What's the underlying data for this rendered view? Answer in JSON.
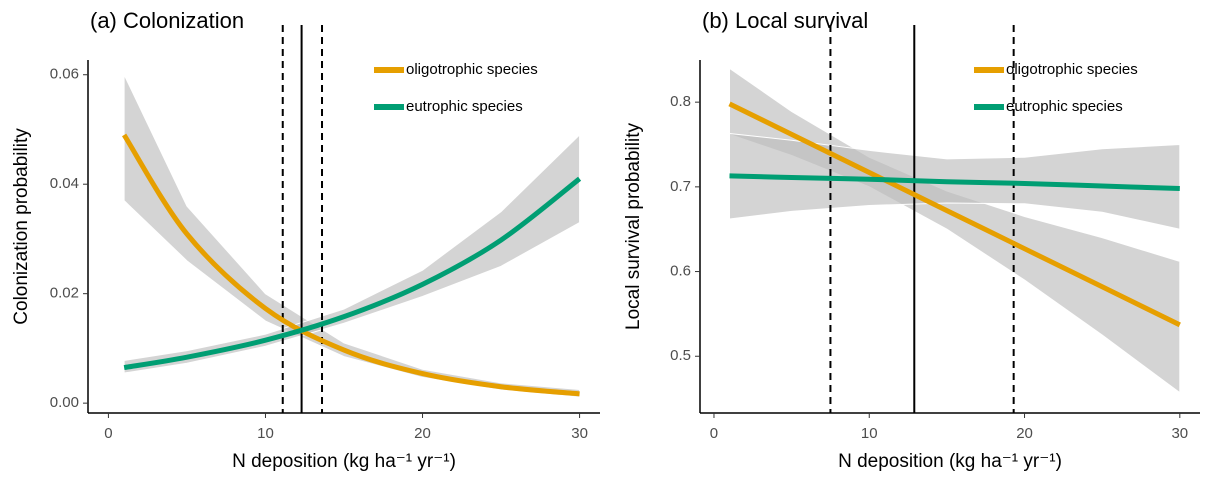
{
  "chart_data": [
    {
      "type": "line",
      "title": "(a) Colonization",
      "x_label": "N deposition (kg ha⁻¹ yr⁻¹)",
      "y_label": "Colonization probability",
      "x": [
        1,
        5,
        10,
        15,
        20,
        25,
        30
      ],
      "series": [
        {
          "name": "oligotrophic species",
          "color": "#e69f00",
          "values": [
            0.049,
            0.0309,
            0.0173,
            0.0097,
            0.0054,
            0.003,
            0.0017
          ],
          "lower": [
            0.037,
            0.026,
            0.015,
            0.0085,
            0.0047,
            0.0024,
            0.0011
          ],
          "upper": [
            0.06,
            0.036,
            0.02,
            0.011,
            0.0062,
            0.0037,
            0.0025
          ]
        },
        {
          "name": "eutrophic species",
          "color": "#009e73",
          "values": [
            0.0065,
            0.0084,
            0.0115,
            0.0158,
            0.0217,
            0.0298,
            0.041
          ],
          "lower": [
            0.0055,
            0.0073,
            0.0104,
            0.0146,
            0.0195,
            0.025,
            0.033
          ],
          "upper": [
            0.0078,
            0.0096,
            0.0126,
            0.0172,
            0.0243,
            0.035,
            0.049
          ]
        }
      ],
      "vlines": [
        {
          "value": 11.1,
          "style": "dashed"
        },
        {
          "value": 12.3,
          "style": "solid"
        },
        {
          "value": 13.6,
          "style": "dashed"
        }
      ],
      "xlim": [
        -1.3,
        31.3
      ],
      "ylim": [
        -0.0018,
        0.07
      ],
      "xticks": [
        0,
        10,
        20,
        30
      ],
      "yticks": [
        {
          "value": 0,
          "label": "0.00"
        },
        0.02,
        0.04,
        0.06
      ],
      "band_color": "#bdbdbd",
      "legend": "top-right"
    },
    {
      "type": "line",
      "title": "(b) Local survival",
      "x_label": "N deposition (kg ha⁻¹ yr⁻¹)",
      "y_label": "Local survival probability",
      "x": [
        1,
        5,
        10,
        15,
        20,
        25,
        30
      ],
      "series": [
        {
          "name": "oligotrophic species",
          "color": "#e69f00",
          "values": [
            0.798,
            0.762,
            0.717,
            0.672,
            0.627,
            0.582,
            0.537
          ],
          "lower": [
            0.762,
            0.737,
            0.7,
            0.65,
            0.59,
            0.525,
            0.457
          ],
          "upper": [
            0.84,
            0.789,
            0.735,
            0.695,
            0.665,
            0.64,
            0.612
          ]
        },
        {
          "name": "eutrophic species",
          "color": "#009e73",
          "values": [
            0.713,
            0.711,
            0.709,
            0.706,
            0.704,
            0.701,
            0.698
          ],
          "lower": [
            0.662,
            0.671,
            0.678,
            0.681,
            0.68,
            0.67,
            0.65
          ],
          "upper": [
            0.763,
            0.755,
            0.743,
            0.733,
            0.735,
            0.745,
            0.75
          ]
        }
      ],
      "vlines": [
        {
          "value": 7.5,
          "style": "dashed"
        },
        {
          "value": 12.9,
          "style": "solid"
        },
        {
          "value": 19.3,
          "style": "dashed"
        }
      ],
      "xlim": [
        -0.9,
        31.3
      ],
      "ylim": [
        0.433,
        0.897
      ],
      "xticks": [
        0,
        10,
        20,
        30
      ],
      "yticks": [
        0.5,
        0.6,
        0.7,
        0.8
      ],
      "band_color": "#bdbdbd",
      "legend": "top-right"
    }
  ]
}
